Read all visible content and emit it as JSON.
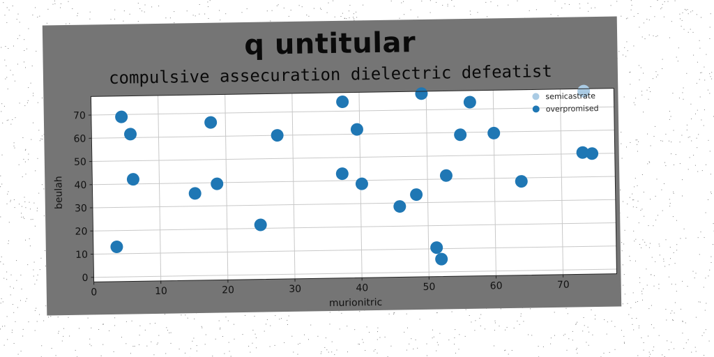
{
  "chart_data": {
    "type": "scatter",
    "title": "q untitular",
    "subtitle": "compulsive assecuration dielectric defeatist",
    "xlabel": "murionitric",
    "ylabel": "beulah",
    "xlim": [
      0,
      78
    ],
    "ylim": [
      -2,
      78
    ],
    "xticks": [
      0,
      10,
      20,
      30,
      40,
      50,
      60,
      70
    ],
    "yticks": [
      0,
      10,
      20,
      30,
      40,
      50,
      60,
      70
    ],
    "grid": true,
    "legend_position": "top-right",
    "series": [
      {
        "name": "semicastrate",
        "color": "#aacbe4",
        "points": [
          [
            73.5,
            77
          ]
        ]
      },
      {
        "name": "overpromised",
        "color": "#1f77b4",
        "points": [
          [
            3.5,
            13
          ],
          [
            4.5,
            69
          ],
          [
            5.8,
            61.5
          ],
          [
            6.1,
            42
          ],
          [
            15.3,
            35.5
          ],
          [
            17.8,
            66
          ],
          [
            18.6,
            39.5
          ],
          [
            25.0,
            21.5
          ],
          [
            27.7,
            60
          ],
          [
            37.3,
            43
          ],
          [
            37.5,
            74
          ],
          [
            39.6,
            62
          ],
          [
            40.2,
            38.5
          ],
          [
            45.8,
            28.5
          ],
          [
            48.3,
            33.5
          ],
          [
            49.3,
            77
          ],
          [
            51.2,
            10.5
          ],
          [
            51.9,
            5.5
          ],
          [
            52.8,
            41.5
          ],
          [
            55.0,
            59
          ],
          [
            56.5,
            73
          ],
          [
            60.0,
            59.5
          ],
          [
            64.0,
            38.5
          ],
          [
            73.2,
            50.5
          ],
          [
            74.6,
            50
          ]
        ]
      }
    ]
  }
}
